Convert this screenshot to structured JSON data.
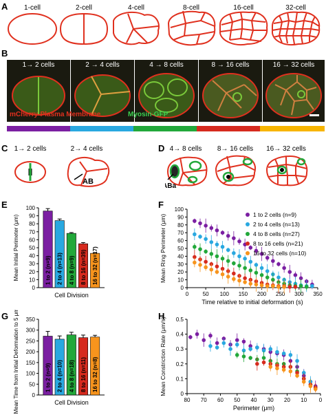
{
  "panel_labels": {
    "a": "A",
    "b": "B",
    "c": "C",
    "d": "D",
    "e": "E",
    "f": "F",
    "g": "G",
    "h": "H"
  },
  "panelA": {
    "labels": [
      "1-cell",
      "2-cell",
      "4-cell",
      "8-cell",
      "16-cell",
      "32-cell"
    ]
  },
  "panelB": {
    "titles": [
      "1→ 2 cells",
      "2 → 4 cells",
      "4 → 8 cells",
      "8 → 16 cells",
      "16 → 32 cells"
    ],
    "membrane_label": "mCherry-Plasma Membrane",
    "myosin_label": "Myosin-GFP",
    "bar_colors": [
      "#7b1fa2",
      "#29a8e0",
      "#22a83a",
      "#d62a1e",
      "#f7b500"
    ]
  },
  "panelC": {
    "titles": [
      "1→ 2 cells",
      "2→ 4 cells"
    ],
    "ab": "AB"
  },
  "panelD": {
    "titles": [
      "4→ 8 cells",
      "8→ 16 cells",
      "16→ 32 cells"
    ],
    "aba": "ABa"
  },
  "colors": {
    "purple": "#7b1fa2",
    "blue": "#29a8e0",
    "green": "#22a83a",
    "red": "#d62a1e",
    "orange": "#f7941d",
    "membrane": "#e0301e"
  },
  "chart_data": [
    {
      "type": "bar",
      "panel": "E",
      "ylabel": "Mean Initial Perimeter (μm)",
      "xlabel": "Cell Division",
      "ylim": [
        0,
        100
      ],
      "yticks": [
        "0",
        "10",
        "20",
        "30",
        "40",
        "50",
        "60",
        "70",
        "80",
        "90",
        "100"
      ],
      "categories": [
        "1 to 2 (n=9)",
        "2 to 4 (n=13)",
        "4 to 8 (n=9)",
        "8 to 16 (n=39)",
        "16 to 32 (n=17)"
      ],
      "values": [
        96,
        84,
        68,
        55,
        43
      ],
      "errors": [
        3,
        2,
        1,
        1.5,
        1
      ],
      "colors": [
        "#7b1fa2",
        "#29a8e0",
        "#22a83a",
        "#d62a1e",
        "#f7941d"
      ]
    },
    {
      "type": "scatter",
      "panel": "F",
      "ylabel": "Mean Ring Perimeter (μm)",
      "xlabel": "Time relative to initial deformation (s)",
      "xlim": [
        0,
        350
      ],
      "ylim": [
        0,
        100
      ],
      "xticks": [
        "0",
        "50",
        "100",
        "150",
        "200",
        "250",
        "300",
        "350"
      ],
      "yticks": [
        "0",
        "10",
        "20",
        "30",
        "40",
        "50",
        "60",
        "70",
        "80",
        "90",
        "100"
      ],
      "series": [
        {
          "name": "1 to 2 cells (n=9)",
          "color": "#7b1fa2",
          "x": [
            20,
            35,
            50,
            65,
            80,
            95,
            110,
            125,
            140,
            155,
            170,
            185,
            200,
            215,
            230,
            245,
            260,
            275,
            290,
            305,
            320,
            335
          ],
          "y": [
            85,
            82,
            79,
            76,
            73,
            70,
            66,
            63,
            59,
            55,
            51,
            47,
            43,
            38,
            34,
            30,
            25,
            20,
            16,
            12,
            8,
            4
          ]
        },
        {
          "name": "2 to 4 cells (n=13)",
          "color": "#29a8e0",
          "x": [
            20,
            35,
            50,
            65,
            80,
            95,
            110,
            125,
            140,
            155,
            170,
            185,
            200,
            215,
            230,
            245,
            260,
            275,
            290,
            305,
            320,
            335
          ],
          "y": [
            68,
            65,
            62,
            58,
            55,
            52,
            48,
            44,
            40,
            37,
            33,
            29,
            25,
            21,
            17,
            13,
            10,
            7,
            5,
            3,
            2,
            2
          ]
        },
        {
          "name": "4 to 8 cells (n=27)",
          "color": "#22a83a",
          "x": [
            20,
            35,
            50,
            65,
            80,
            95,
            110,
            125,
            140,
            155,
            170,
            185,
            200,
            215,
            230,
            245,
            260,
            275,
            290,
            305,
            320
          ],
          "y": [
            52,
            49,
            46,
            43,
            40,
            37,
            34,
            31,
            28,
            25,
            22,
            19,
            16,
            13,
            10,
            7,
            5,
            3,
            2,
            2,
            1
          ]
        },
        {
          "name": "8 to 16 cells (n=21)",
          "color": "#d62a1e",
          "x": [
            20,
            35,
            50,
            65,
            80,
            95,
            110,
            125,
            140,
            155,
            170,
            185,
            200,
            215,
            230,
            245,
            260,
            275,
            290
          ],
          "y": [
            39,
            36,
            33,
            30,
            27,
            24,
            21,
            18,
            15,
            12,
            10,
            8,
            6,
            4,
            3,
            2,
            2,
            1,
            1
          ]
        },
        {
          "name": "16 to 32 cells (n=10)",
          "color": "#f7941d",
          "x": [
            20,
            35,
            50,
            65,
            80,
            95,
            110,
            125,
            140,
            155,
            170,
            185,
            200,
            215,
            230,
            245,
            260
          ],
          "y": [
            32,
            29,
            26,
            23,
            20,
            17,
            14,
            11,
            9,
            7,
            5,
            4,
            3,
            2,
            2,
            1,
            1
          ]
        }
      ]
    },
    {
      "type": "bar",
      "panel": "G",
      "ylabel": "Mean Time from Initial Deformation to 5 μm (s)",
      "xlabel": "Cell Division",
      "ylim": [
        0,
        350
      ],
      "yticks": [
        "0",
        "50",
        "100",
        "150",
        "200",
        "250",
        "300",
        "350"
      ],
      "categories": [
        "1 to 2 (n=9)",
        "2 to 4 (n=10)",
        "4 to 8 (n=18)",
        "8 to 16 (n=11)",
        "16 to 32 (n=8)"
      ],
      "values": [
        272,
        258,
        278,
        265,
        268
      ],
      "errors": [
        22,
        15,
        12,
        12,
        8
      ],
      "colors": [
        "#7b1fa2",
        "#29a8e0",
        "#22a83a",
        "#d62a1e",
        "#f7941d"
      ]
    },
    {
      "type": "scatter",
      "panel": "H",
      "ylabel": "Mean Constriction Rate (μm/s)",
      "xlabel": "Perimeter (μm)",
      "xlim": [
        80,
        0
      ],
      "ylim": [
        0,
        0.5
      ],
      "xticks": [
        "80",
        "70",
        "60",
        "50",
        "40",
        "30",
        "20",
        "10",
        "0"
      ],
      "yticks": [
        "0",
        "0.1",
        "0.2",
        "0.3",
        "0.4",
        "0.5"
      ],
      "series": [
        {
          "name": "1 to 2 cells",
          "color": "#7b1fa2",
          "x": [
            78,
            74,
            70,
            66,
            62,
            58,
            54,
            50,
            46,
            42,
            38,
            34,
            30,
            26,
            22,
            18,
            14,
            10,
            6,
            3
          ],
          "y": [
            0.38,
            0.4,
            0.36,
            0.39,
            0.34,
            0.37,
            0.33,
            0.36,
            0.35,
            0.32,
            0.31,
            0.3,
            0.28,
            0.27,
            0.26,
            0.22,
            0.18,
            0.12,
            0.08,
            0.05
          ]
        },
        {
          "name": "2 to 4 cells",
          "color": "#29a8e0",
          "x": [
            66,
            62,
            58,
            54,
            50,
            46,
            42,
            38,
            34,
            30,
            26,
            22,
            18,
            14,
            10,
            6,
            3
          ],
          "y": [
            0.32,
            0.31,
            0.34,
            0.3,
            0.33,
            0.29,
            0.3,
            0.31,
            0.29,
            0.3,
            0.28,
            0.27,
            0.26,
            0.22,
            0.14,
            0.08,
            0.04
          ]
        },
        {
          "name": "4 to 8 cells",
          "color": "#22a83a",
          "x": [
            50,
            46,
            42,
            38,
            34,
            30,
            26,
            22,
            18,
            14,
            10,
            6,
            3
          ],
          "y": [
            0.26,
            0.25,
            0.24,
            0.23,
            0.24,
            0.22,
            0.2,
            0.2,
            0.18,
            0.15,
            0.1,
            0.06,
            0.04
          ]
        },
        {
          "name": "8 to 16 cells",
          "color": "#d62a1e",
          "x": [
            38,
            34,
            30,
            26,
            22,
            18,
            14,
            10,
            6,
            3
          ],
          "y": [
            0.2,
            0.21,
            0.2,
            0.19,
            0.18,
            0.18,
            0.14,
            0.1,
            0.06,
            0.04
          ]
        },
        {
          "name": "16 to 32 cells",
          "color": "#f7941d",
          "x": [
            30,
            26,
            22,
            18,
            14,
            10,
            6,
            3
          ],
          "y": [
            0.18,
            0.17,
            0.16,
            0.15,
            0.12,
            0.08,
            0.05,
            0.03
          ]
        }
      ]
    }
  ]
}
